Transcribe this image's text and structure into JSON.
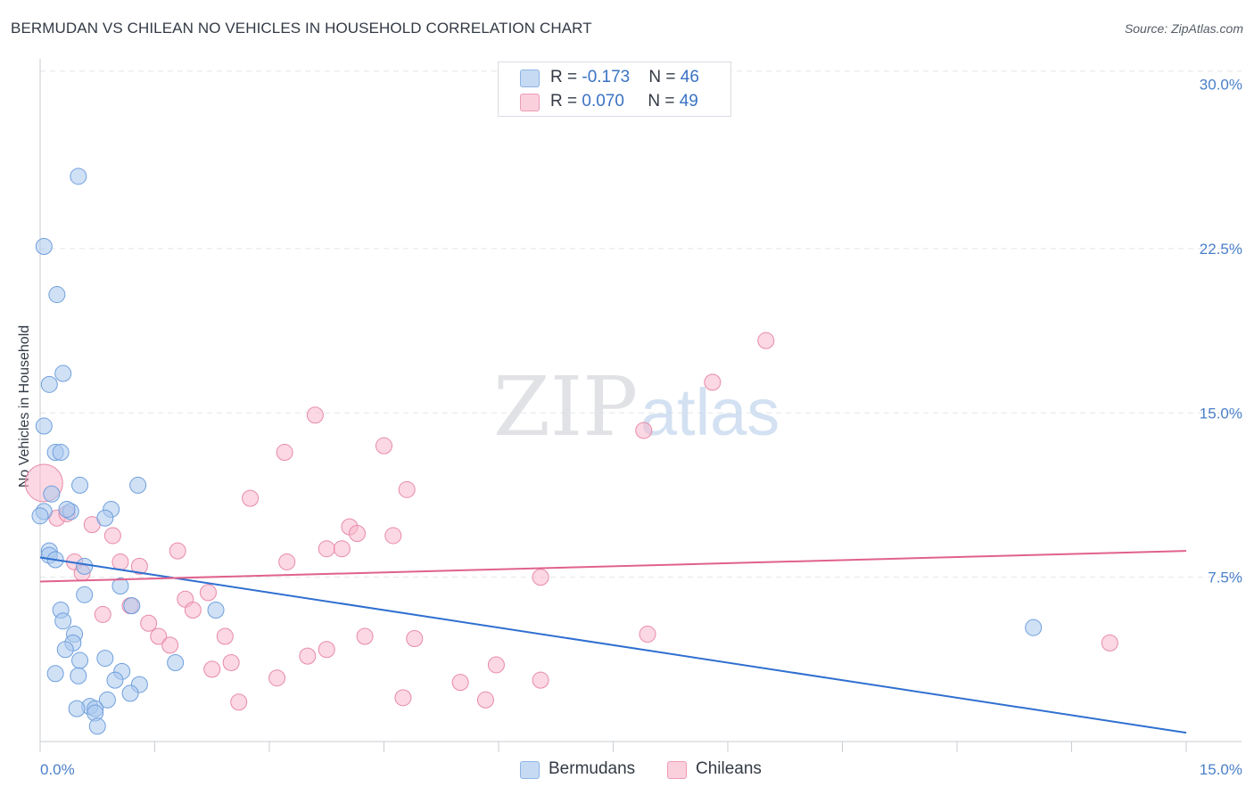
{
  "header": {
    "title": "BERMUDAN VS CHILEAN NO VEHICLES IN HOUSEHOLD CORRELATION CHART",
    "source": "Source: ZipAtlas.com"
  },
  "watermark": {
    "zip": "ZIP",
    "atlas": "atlas"
  },
  "legend": {
    "rows": [
      {
        "r_label": "R = ",
        "r_value": "-0.173",
        "n_label": "N = ",
        "n_value": "46",
        "color": "#aac8ee"
      },
      {
        "r_label": "R = ",
        "r_value": "0.070",
        "n_label": "N = ",
        "n_value": "49",
        "color": "#f7b8cc"
      }
    ]
  },
  "bottom_legend": {
    "items": [
      {
        "label": "Bermudans",
        "color": "#aac8ee"
      },
      {
        "label": "Chileans",
        "color": "#f7b8cc"
      }
    ]
  },
  "chart_data": {
    "type": "scatter",
    "title": "BERMUDAN VS CHILEAN NO VEHICLES IN HOUSEHOLD CORRELATION CHART",
    "xlabel": "",
    "ylabel": "No Vehicles in Household",
    "xlim": [
      0,
      15
    ],
    "ylim": [
      0,
      31
    ],
    "x_tick_labels": [
      "0.0%",
      "15.0%"
    ],
    "y_ticks": [
      {
        "value": 7.5,
        "label": "7.5%"
      },
      {
        "value": 15.0,
        "label": "15.0%"
      },
      {
        "value": 22.5,
        "label": "22.5%"
      },
      {
        "value": 30.0,
        "label": "30.0%"
      }
    ],
    "grid": true,
    "series": [
      {
        "name": "Bermudans",
        "color": "#aac8ee",
        "stroke": "#6f9fdc",
        "trend": {
          "x0": 0.0,
          "y0": 8.4,
          "x1": 15.0,
          "y1": 0.4,
          "color": "#2f6fd0"
        },
        "points": [
          [
            0.5,
            25.8
          ],
          [
            0.05,
            22.6
          ],
          [
            0.22,
            20.4
          ],
          [
            0.3,
            16.8
          ],
          [
            0.12,
            16.3
          ],
          [
            0.05,
            14.4
          ],
          [
            0.2,
            13.2
          ],
          [
            0.27,
            13.2
          ],
          [
            0.52,
            11.7
          ],
          [
            1.28,
            11.7
          ],
          [
            0.15,
            11.3
          ],
          [
            0.05,
            10.5
          ],
          [
            0.4,
            10.5
          ],
          [
            0.93,
            10.6
          ],
          [
            0.85,
            10.2
          ],
          [
            0.12,
            8.7
          ],
          [
            0.12,
            8.5
          ],
          [
            0.2,
            8.3
          ],
          [
            0.58,
            8.0
          ],
          [
            1.05,
            7.1
          ],
          [
            0.58,
            6.7
          ],
          [
            1.2,
            6.2
          ],
          [
            0.27,
            6.0
          ],
          [
            2.3,
            6.0
          ],
          [
            0.3,
            5.5
          ],
          [
            0.45,
            4.9
          ],
          [
            0.43,
            4.5
          ],
          [
            0.33,
            4.2
          ],
          [
            0.52,
            3.7
          ],
          [
            0.85,
            3.8
          ],
          [
            1.77,
            3.6
          ],
          [
            0.2,
            3.1
          ],
          [
            0.5,
            3.0
          ],
          [
            1.07,
            3.2
          ],
          [
            0.98,
            2.8
          ],
          [
            1.3,
            2.6
          ],
          [
            1.18,
            2.2
          ],
          [
            0.88,
            1.9
          ],
          [
            0.65,
            1.6
          ],
          [
            0.48,
            1.5
          ],
          [
            0.72,
            1.5
          ],
          [
            0.72,
            1.3
          ],
          [
            0.75,
            0.7
          ],
          [
            13.0,
            5.2
          ],
          [
            0.0,
            10.3
          ],
          [
            0.35,
            10.6
          ]
        ]
      },
      {
        "name": "Chileans",
        "color": "#f7b8cc",
        "stroke": "#e88aa8",
        "trend": {
          "x0": 0.0,
          "y0": 7.3,
          "x1": 15.0,
          "y1": 8.7,
          "color": "#e0628c"
        },
        "points": [
          [
            0.05,
            11.8
          ],
          [
            0.22,
            10.2
          ],
          [
            0.35,
            10.4
          ],
          [
            0.68,
            9.9
          ],
          [
            0.95,
            9.4
          ],
          [
            3.2,
            13.2
          ],
          [
            3.23,
            8.2
          ],
          [
            3.6,
            14.9
          ],
          [
            4.5,
            13.5
          ],
          [
            4.8,
            11.5
          ],
          [
            4.05,
            9.8
          ],
          [
            4.15,
            9.5
          ],
          [
            4.62,
            9.4
          ],
          [
            3.75,
            8.8
          ],
          [
            3.95,
            8.8
          ],
          [
            1.8,
            8.7
          ],
          [
            1.05,
            8.2
          ],
          [
            1.3,
            8.0
          ],
          [
            0.45,
            8.2
          ],
          [
            0.55,
            7.7
          ],
          [
            2.75,
            11.1
          ],
          [
            2.2,
            6.8
          ],
          [
            1.9,
            6.5
          ],
          [
            2.0,
            6.0
          ],
          [
            1.18,
            6.2
          ],
          [
            0.82,
            5.8
          ],
          [
            1.42,
            5.4
          ],
          [
            1.55,
            4.8
          ],
          [
            1.7,
            4.4
          ],
          [
            2.42,
            4.8
          ],
          [
            2.5,
            3.6
          ],
          [
            2.25,
            3.3
          ],
          [
            3.1,
            2.9
          ],
          [
            3.5,
            3.9
          ],
          [
            3.75,
            4.2
          ],
          [
            4.25,
            4.8
          ],
          [
            4.9,
            4.7
          ],
          [
            5.5,
            2.7
          ],
          [
            5.83,
            1.9
          ],
          [
            5.97,
            3.5
          ],
          [
            6.55,
            2.8
          ],
          [
            6.55,
            7.5
          ],
          [
            7.9,
            14.2
          ],
          [
            7.95,
            4.9
          ],
          [
            8.8,
            16.4
          ],
          [
            9.5,
            18.3
          ],
          [
            14.0,
            4.5
          ],
          [
            2.6,
            1.8
          ],
          [
            4.75,
            2.0
          ]
        ]
      }
    ]
  }
}
